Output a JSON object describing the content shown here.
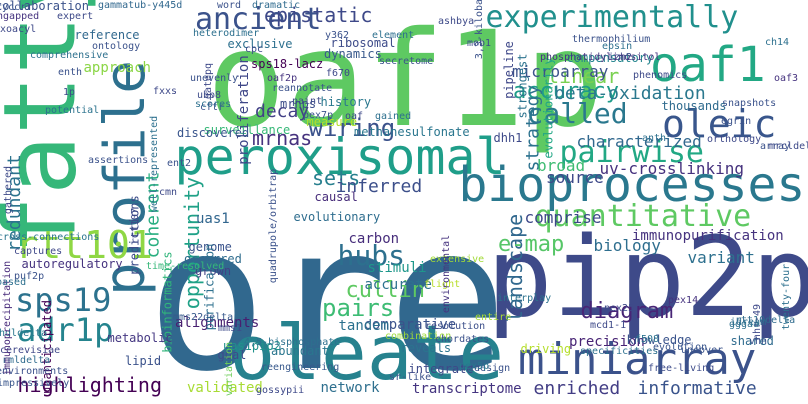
{
  "colors": {
    "background": "#ffffff",
    "palette": [
      "#440154",
      "#482878",
      "#3e4a89",
      "#31688e",
      "#26828e",
      "#1f9e89",
      "#35b779",
      "#6ece58",
      "#b5de2b",
      "#fde725"
    ]
  },
  "words": [
    {
      "text": "ore",
      "color": "#31688e",
      "vertical": false
    },
    {
      "text": "oaf1p",
      "color": "#5ec962",
      "vertical": false
    },
    {
      "text": "pip2p",
      "color": "#3e4a89",
      "vertical": false
    },
    {
      "text": "oleate",
      "color": "#26828e",
      "vertical": false
    },
    {
      "text": "fatty",
      "color": "#35b779",
      "vertical": true
    },
    {
      "text": "peroxisomal",
      "color": "#1f9e89",
      "vertical": false
    },
    {
      "text": "bioprocesses",
      "color": "#2a788e",
      "vertical": false
    },
    {
      "text": "miniarray",
      "color": "#3b528b",
      "vertical": false
    },
    {
      "text": "profile",
      "color": "#2d708e",
      "vertical": true
    },
    {
      "text": "experimentally",
      "color": "#21908d",
      "vertical": false
    },
    {
      "text": "oaf1",
      "color": "#22a884",
      "vertical": false
    },
    {
      "text": "ancient",
      "color": "#3b528b",
      "vertical": false
    },
    {
      "text": "sps19",
      "color": "#2c728e",
      "vertical": false
    },
    {
      "text": "adr1p",
      "color": "#25848e",
      "vertical": false
    },
    {
      "text": "rtt101",
      "color": "#8fd744",
      "vertical": false
    },
    {
      "text": "oleic",
      "color": "#39568c",
      "vertical": false
    },
    {
      "text": "quantitative",
      "color": "#5ec962",
      "vertical": false
    },
    {
      "text": "hubs",
      "color": "#2d708e",
      "vertical": false
    },
    {
      "text": "pairwise",
      "color": "#22a884",
      "vertical": false
    },
    {
      "text": "opportunity",
      "color": "#1fa187",
      "vertical": true
    },
    {
      "text": "called",
      "color": "#2a788e",
      "vertical": false
    },
    {
      "text": "landscape",
      "color": "#31688e",
      "vertical": true
    },
    {
      "text": "highlighting",
      "color": "#440154",
      "vertical": false
    },
    {
      "text": "diagram",
      "color": "#482576",
      "vertical": false
    },
    {
      "text": "wiring",
      "color": "#3b528b",
      "vertical": false
    },
    {
      "text": "epistatic",
      "color": "#3e4989",
      "vertical": false
    },
    {
      "text": "cullin",
      "color": "#5ec962",
      "vertical": false
    },
    {
      "text": "pairs",
      "color": "#3dbc74",
      "vertical": false
    },
    {
      "text": "e-map",
      "color": "#56c667",
      "vertical": false
    },
    {
      "text": "linear",
      "color": "#7ad151",
      "vertical": false
    },
    {
      "text": "accuracy",
      "color": "#1e9c89",
      "vertical": false
    },
    {
      "text": "decay",
      "color": "#424086",
      "vertical": false
    },
    {
      "text": "mrnas",
      "color": "#46327e",
      "vertical": false
    },
    {
      "text": "sets",
      "color": "#277f8e",
      "vertical": false
    },
    {
      "text": "inferred",
      "color": "#3c4f8a",
      "vertical": false
    },
    {
      "text": "enriched",
      "color": "#433e85",
      "vertical": false
    },
    {
      "text": "informative",
      "color": "#3a548c",
      "vertical": false
    },
    {
      "text": "redundant",
      "color": "#2c738e",
      "vertical": true
    },
    {
      "text": "coherent",
      "color": "#28ae80",
      "vertical": true
    },
    {
      "text": "strategy",
      "color": "#2c728e",
      "vertical": true
    },
    {
      "text": "beta-oxidation",
      "color": "#2a788e",
      "vertical": false
    },
    {
      "text": "microarray",
      "color": "#3b528b",
      "vertical": false
    },
    {
      "text": "characterized",
      "color": "#31688e",
      "vertical": false
    },
    {
      "text": "uv-crosslinking",
      "color": "#46327e",
      "vertical": false
    },
    {
      "text": "broad",
      "color": "#3fbc73",
      "vertical": false
    },
    {
      "text": "source",
      "color": "#3e4989",
      "vertical": false
    },
    {
      "text": "biology",
      "color": "#2e6e8e",
      "vertical": false
    },
    {
      "text": "variant",
      "color": "#2d708e",
      "vertical": false
    },
    {
      "text": "immunopurification",
      "color": "#46337f",
      "vertical": false
    },
    {
      "text": "comprise",
      "color": "#3e4989",
      "vertical": false
    },
    {
      "text": "precision",
      "color": "#482475",
      "vertical": false
    },
    {
      "text": "comparative",
      "color": "#3b528b",
      "vertical": false
    },
    {
      "text": "tandem",
      "color": "#2c718e",
      "vertical": false
    },
    {
      "text": "alignments",
      "color": "#481f70",
      "vertical": false
    },
    {
      "text": "validated",
      "color": "#a8db34",
      "vertical": false
    },
    {
      "text": "network",
      "color": "#2e6f8e",
      "vertical": false
    },
    {
      "text": "transcriptome",
      "color": "#453581",
      "vertical": false
    },
    {
      "text": "stimuli",
      "color": "#1f978b",
      "vertical": false
    },
    {
      "text": "carbon",
      "color": "#472d7b",
      "vertical": false
    },
    {
      "text": "uas1",
      "color": "#31668e",
      "vertical": false
    },
    {
      "text": "genome",
      "color": "#3a538b",
      "vertical": false
    },
    {
      "text": "occurred",
      "color": "#2f6c8e",
      "vertical": false
    },
    {
      "text": "grown",
      "color": "#424186",
      "vertical": false
    },
    {
      "text": "accurate",
      "color": "#2d718e",
      "vertical": false
    },
    {
      "text": "approach",
      "color": "#8bd646",
      "vertical": false
    },
    {
      "text": "proliferation",
      "color": "#3f4788",
      "vertical": true
    },
    {
      "text": "history",
      "color": "#2a788e",
      "vertical": false
    },
    {
      "text": "mrnps",
      "color": "#3d4e8a",
      "vertical": false
    },
    {
      "text": "sps18-lacz",
      "color": "#440154",
      "vertical": false
    },
    {
      "text": "surveillance",
      "color": "#37b878",
      "vertical": false
    },
    {
      "text": "discovered",
      "color": "#39558c",
      "vertical": false
    },
    {
      "text": "dhh1",
      "color": "#3e4a89",
      "vertical": false
    },
    {
      "text": "measure",
      "color": "#b5de2b",
      "vertical": false
    },
    {
      "text": "methanesulfonate",
      "color": "#2a768e",
      "vertical": false
    },
    {
      "text": "causal",
      "color": "#472c7a",
      "vertical": false
    },
    {
      "text": "autoregulatory",
      "color": "#46337f",
      "vertical": false
    },
    {
      "text": "collaboration",
      "color": "#3b528b",
      "vertical": false
    },
    {
      "text": "reference",
      "color": "#31688e",
      "vertical": false
    },
    {
      "text": "exclusive",
      "color": "#2d708e",
      "vertical": false
    },
    {
      "text": "dynamics",
      "color": "#38598c",
      "vertical": false
    },
    {
      "text": "ribosomal",
      "color": "#3e4c8a",
      "vertical": false
    },
    {
      "text": "compensatory",
      "color": "#25858e",
      "vertical": false
    },
    {
      "text": "thousands",
      "color": "#2f6b8e",
      "vertical": false
    },
    {
      "text": "pipeline",
      "color": "#3f4889",
      "vertical": true
    },
    {
      "text": "strongest",
      "color": "#2c738e",
      "vertical": true
    },
    {
      "text": "evolutionarily",
      "color": "#21a685",
      "vertical": true
    },
    {
      "text": "evolutionary",
      "color": "#2e6d8e",
      "vertical": false
    },
    {
      "text": "bioinformatics",
      "color": "#31b57b",
      "vertical": true
    },
    {
      "text": "knowledge",
      "color": "#3a548c",
      "vertical": false
    },
    {
      "text": "metabolic",
      "color": "#453882",
      "vertical": false
    },
    {
      "text": "lipid",
      "color": "#3b528b",
      "vertical": false
    },
    {
      "text": "unanticipated",
      "color": "#440154",
      "vertical": true
    },
    {
      "text": "purification",
      "color": "#2d708e",
      "vertical": true
    },
    {
      "text": "shared",
      "color": "#2f6b8e",
      "vertical": false
    },
    {
      "text": "goal",
      "color": "#3e4c8a",
      "vertical": false
    },
    {
      "text": "abundant",
      "color": "#2a768e",
      "vertical": false
    },
    {
      "text": "uas1pip2",
      "color": "#20928c",
      "vertical": false
    },
    {
      "text": "predictions",
      "color": "#3d4d8a",
      "vertical": true
    },
    {
      "text": "reveals",
      "color": "#2b748e",
      "vertical": false
    },
    {
      "text": "integrate",
      "color": "#3e4989",
      "vertical": false
    },
    {
      "text": "driving",
      "color": "#b5de2b",
      "vertical": false
    },
    {
      "text": "interplay",
      "color": "#2c738e",
      "vertical": false
    },
    {
      "text": "uncover",
      "color": "#3a538b",
      "vertical": false
    },
    {
      "text": "idream",
      "color": "#2e6e8e",
      "vertical": false
    },
    {
      "text": "entire",
      "color": "#a8db34",
      "vertical": false
    },
    {
      "text": "resolution",
      "color": "#3c4f8a",
      "vertical": false
    },
    {
      "text": "combination",
      "color": "#9fda3a",
      "vertical": false
    },
    {
      "text": "flight",
      "color": "#b8de29",
      "vertical": false
    },
    {
      "text": "extensive",
      "color": "#a2da37",
      "vertical": false
    },
    {
      "text": "time-resolved",
      "color": "#35b779",
      "vertical": false
    },
    {
      "text": "cross-connections",
      "color": "#2b758e",
      "vertical": false
    },
    {
      "text": "captures",
      "color": "#3f4889",
      "vertical": false
    },
    {
      "text": "environments",
      "color": "#3b518b",
      "vertical": false
    },
    {
      "text": "impressively",
      "color": "#39568c",
      "vertical": false
    },
    {
      "text": "rmldelta",
      "color": "#2f6b8e",
      "vertical": false
    },
    {
      "text": "khdldelta",
      "color": "#2a788e",
      "vertical": false
    },
    {
      "text": "cerevisiae",
      "color": "#3f4788",
      "vertical": false
    },
    {
      "text": "immunoprecipitation",
      "color": "#472a7a",
      "vertical": true
    },
    {
      "text": "variation",
      "color": "#6ece58",
      "vertical": true
    },
    {
      "text": "redesign",
      "color": "#3b528b",
      "vertical": false
    },
    {
      "text": "specificities",
      "color": "#2d708e",
      "vertical": false
    },
    {
      "text": "free-living",
      "color": "#3e4c8a",
      "vertical": false
    },
    {
      "text": "pex5p",
      "color": "#2a768e",
      "vertical": false
    },
    {
      "text": "sr-like",
      "color": "#3b528b",
      "vertical": false
    },
    {
      "text": "reengineering",
      "color": "#38598c",
      "vertical": false
    },
    {
      "text": "mcd1-1",
      "color": "#3e4a89",
      "vertical": false
    },
    {
      "text": "pex25",
      "color": "#3e4989",
      "vertical": false
    },
    {
      "text": "pex14",
      "color": "#46337f",
      "vertical": false
    },
    {
      "text": "f508",
      "color": "#2c738e",
      "vertical": false
    },
    {
      "text": "evolution",
      "color": "#39558c",
      "vertical": false
    },
    {
      "text": "rtt10delta",
      "color": "#2f6b8e",
      "vertical": false
    },
    {
      "text": "4,5-bisphosphate",
      "color": "#2d708e",
      "vertical": false
    },
    {
      "text": "mms22delta",
      "color": "#37598c",
      "vertical": false
    },
    {
      "text": "mms1",
      "color": "#3e4c8a",
      "vertical": false
    },
    {
      "text": "chordates",
      "color": "#3b528b",
      "vertical": false
    },
    {
      "text": "twenty-four",
      "color": "#2d708e",
      "vertical": true
    },
    {
      "text": "gossypii",
      "color": "#3e4989",
      "vertical": false
    },
    {
      "text": "gammatub-y445d",
      "color": "#31688e",
      "vertical": false
    },
    {
      "text": "word",
      "color": "#3b528b",
      "vertical": false
    },
    {
      "text": "dramatic",
      "color": "#2f6b8e",
      "vertical": false
    },
    {
      "text": "ashbya",
      "color": "#3e4a89",
      "vertical": false
    },
    {
      "text": "y362",
      "color": "#3b528b",
      "vertical": false
    },
    {
      "text": "heterodimer",
      "color": "#2d708e",
      "vertical": false
    },
    {
      "text": "cpc",
      "color": "#3e4c8a",
      "vertical": false
    },
    {
      "text": "ontology",
      "color": "#3b528b",
      "vertical": false
    },
    {
      "text": "ungapped",
      "color": "#46337f",
      "vertical": false
    },
    {
      "text": "oxoacyl",
      "color": "#3e4989",
      "vertical": false
    },
    {
      "text": "comprehensive",
      "color": "#2d708e",
      "vertical": false
    },
    {
      "text": "enth",
      "color": "#3b528b",
      "vertical": false
    },
    {
      "text": "1p",
      "color": "#3e4a89",
      "vertical": false
    },
    {
      "text": "potential",
      "color": "#2c738e",
      "vertical": false
    },
    {
      "text": "unevenly",
      "color": "#3b528b",
      "vertical": false
    },
    {
      "text": "gatepq",
      "color": "#3e4989",
      "vertical": true
    },
    {
      "text": "ubp8",
      "color": "#3e4c8a",
      "vertical": false
    },
    {
      "text": "cftr",
      "color": "#3b528b",
      "vertical": false
    },
    {
      "text": "scores",
      "color": "#2d708e",
      "vertical": false
    },
    {
      "text": "fxxs",
      "color": "#3e4989",
      "vertical": false
    },
    {
      "text": "cyccrr",
      "color": "#3b528b",
      "vertical": false
    },
    {
      "text": "expert",
      "color": "#3e4a89",
      "vertical": false
    },
    {
      "text": "oaf2p",
      "color": "#46337f",
      "vertical": false
    },
    {
      "text": "element",
      "color": "#2d708e",
      "vertical": false
    },
    {
      "text": "reannotate",
      "color": "#3b528b",
      "vertical": false
    },
    {
      "text": "paint",
      "color": "#3e4989",
      "vertical": false
    },
    {
      "text": "pex7p",
      "color": "#3b528b",
      "vertical": false
    },
    {
      "text": "oaf",
      "color": "#3e4a89",
      "vertical": false
    },
    {
      "text": "gained",
      "color": "#2d708e",
      "vertical": false
    },
    {
      "text": "f670",
      "color": "#3e4989",
      "vertical": false
    },
    {
      "text": "secretome",
      "color": "#3b528b",
      "vertical": false
    },
    {
      "text": "mob1",
      "color": "#3e4c8a",
      "vertical": false
    },
    {
      "text": "thermophilium",
      "color": "#3b528b",
      "vertical": false
    },
    {
      "text": "izh2",
      "color": "#3e4989",
      "vertical": false
    },
    {
      "text": "phosphatidylinositol",
      "color": "#46337f",
      "vertical": false
    },
    {
      "text": "epsin",
      "color": "#2d708e",
      "vertical": false
    },
    {
      "text": "phenomics",
      "color": "#3e4a89",
      "vertical": false
    },
    {
      "text": "snapshots",
      "color": "#3b528b",
      "vertical": false
    },
    {
      "text": "anth",
      "color": "#2d708e",
      "vertical": false
    },
    {
      "text": "egrin",
      "color": "#3b528b",
      "vertical": false
    },
    {
      "text": "orthology",
      "color": "#3e4989",
      "vertical": false
    },
    {
      "text": "array",
      "color": "#3b528b",
      "vertical": false
    },
    {
      "text": "mrcldelta",
      "color": "#3e4a89",
      "vertical": false
    },
    {
      "text": "ch14",
      "color": "#2d708e",
      "vertical": false
    },
    {
      "text": "oaf3",
      "color": "#46337f",
      "vertical": false
    },
    {
      "text": "3,3-kilobase",
      "color": "#3b528b",
      "vertical": true
    },
    {
      "text": "nhr-49",
      "color": "#3e4989",
      "vertical": true
    },
    {
      "text": "ent2",
      "color": "#3b528b",
      "vertical": false
    },
    {
      "text": "cmn",
      "color": "#3e4a89",
      "vertical": false
    },
    {
      "text": "well-represented",
      "color": "#2d708e",
      "vertical": true
    },
    {
      "text": "quadrupole/orbitrap",
      "color": "#3b528b",
      "vertical": true
    },
    {
      "text": "rtt107",
      "color": "#3e4989",
      "vertical": true
    },
    {
      "text": "puf2p",
      "color": "#3b528b",
      "vertical": false
    },
    {
      "text": "based",
      "color": "#2d708e",
      "vertical": false
    },
    {
      "text": "assertions",
      "color": "#3b528b",
      "vertical": false
    },
    {
      "text": "gathered",
      "color": "#3e4a89",
      "vertical": true
    },
    {
      "text": "environmental",
      "color": "#46337f",
      "vertical": true
    },
    {
      "text": "gggaa",
      "color": "#2d708e",
      "vertical": false
    },
    {
      "text": "vhh",
      "color": "#3b528b",
      "vertical": false
    },
    {
      "text": "mllp",
      "color": "#3e4989",
      "vertical": false
    }
  ]
}
